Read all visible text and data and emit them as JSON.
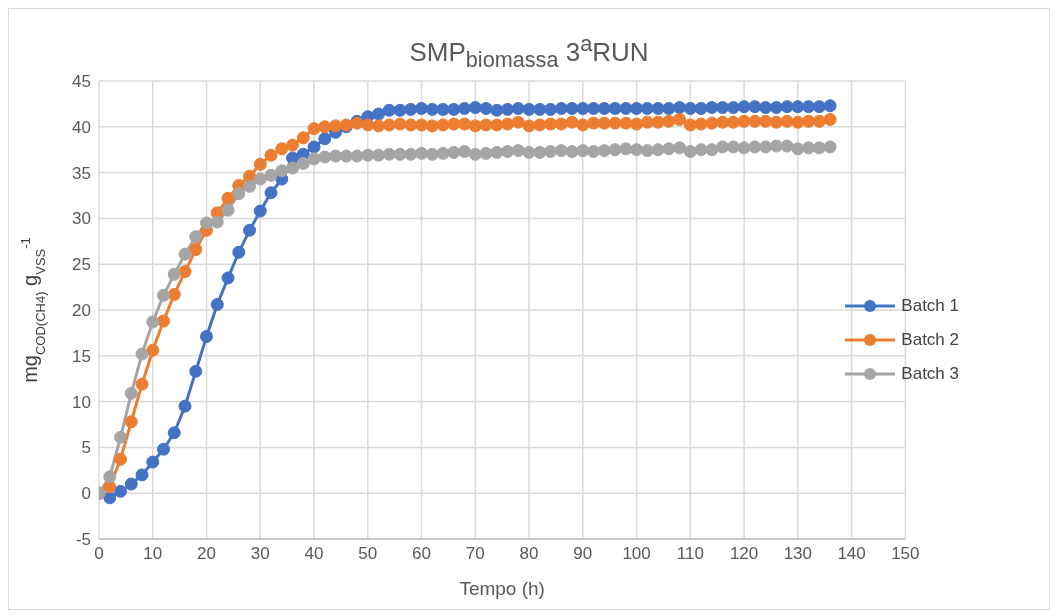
{
  "chart_data": {
    "type": "line",
    "title": "SMP$_{biomassa}$ 3$^{a}$RUN",
    "xlabel": "Tempo (h)",
    "ylabel": "mg$_{COD(CH4)}$ g$_{VSS}$$^{-1}$",
    "x": [
      0,
      2,
      4,
      6,
      8,
      10,
      12,
      14,
      16,
      18,
      20,
      22,
      24,
      26,
      28,
      30,
      32,
      34,
      36,
      38,
      40,
      42,
      44,
      46,
      48,
      50,
      52,
      54,
      56,
      58,
      60,
      62,
      64,
      66,
      68,
      70,
      72,
      74,
      76,
      78,
      80,
      82,
      84,
      86,
      88,
      90,
      92,
      94,
      96,
      98,
      100,
      102,
      104,
      106,
      108,
      110,
      112,
      114,
      116,
      118,
      120,
      122,
      124,
      126,
      128,
      130,
      132,
      134,
      136
    ],
    "series": [
      {
        "name": "Batch 1",
        "color": "#4472c4",
        "values": [
          0,
          -0.5,
          0.2,
          1.0,
          2.0,
          3.4,
          4.8,
          6.6,
          9.5,
          13.3,
          17.1,
          20.6,
          23.5,
          26.3,
          28.7,
          30.8,
          32.8,
          34.3,
          36.6,
          37.0,
          37.8,
          38.7,
          39.4,
          40.0,
          40.6,
          41.1,
          41.4,
          41.8,
          41.8,
          41.9,
          42.0,
          41.9,
          41.9,
          41.9,
          42.0,
          42.1,
          42.0,
          41.8,
          41.9,
          42.0,
          41.9,
          41.9,
          41.9,
          42.0,
          42.0,
          42.0,
          42.0,
          42.0,
          42.0,
          42.0,
          42.0,
          42.0,
          42.0,
          42.0,
          42.1,
          42.0,
          42.0,
          42.1,
          42.1,
          42.1,
          42.2,
          42.2,
          42.1,
          42.1,
          42.2,
          42.2,
          42.2,
          42.2,
          42.3
        ]
      },
      {
        "name": "Batch 2",
        "color": "#ed7d31",
        "values": [
          0,
          0.7,
          3.7,
          7.8,
          11.9,
          15.6,
          18.8,
          21.7,
          24.2,
          26.6,
          28.7,
          30.6,
          32.2,
          33.6,
          34.6,
          35.9,
          36.9,
          37.6,
          38.0,
          38.8,
          39.8,
          40.0,
          40.1,
          40.2,
          40.4,
          40.2,
          40.1,
          40.2,
          40.3,
          40.2,
          40.2,
          40.1,
          40.2,
          40.3,
          40.3,
          40.1,
          40.2,
          40.2,
          40.3,
          40.5,
          40.1,
          40.2,
          40.3,
          40.3,
          40.5,
          40.2,
          40.4,
          40.4,
          40.4,
          40.4,
          40.3,
          40.5,
          40.5,
          40.6,
          40.8,
          40.2,
          40.3,
          40.4,
          40.5,
          40.5,
          40.6,
          40.6,
          40.6,
          40.5,
          40.6,
          40.5,
          40.6,
          40.6,
          40.8
        ]
      },
      {
        "name": "Batch 3",
        "color": "#a5a5a5",
        "values": [
          0,
          1.8,
          6.1,
          10.9,
          15.2,
          18.7,
          21.6,
          23.9,
          26.1,
          28.0,
          29.5,
          29.6,
          30.9,
          32.7,
          33.5,
          34.3,
          34.7,
          35.2,
          35.5,
          36.0,
          36.5,
          36.7,
          36.8,
          36.8,
          36.8,
          36.9,
          36.9,
          37.0,
          37.0,
          37.0,
          37.1,
          37.0,
          37.1,
          37.2,
          37.3,
          37.0,
          37.1,
          37.2,
          37.3,
          37.4,
          37.2,
          37.2,
          37.3,
          37.4,
          37.3,
          37.4,
          37.3,
          37.4,
          37.5,
          37.6,
          37.5,
          37.4,
          37.5,
          37.6,
          37.7,
          37.3,
          37.5,
          37.5,
          37.8,
          37.8,
          37.7,
          37.8,
          37.8,
          37.9,
          37.9,
          37.6,
          37.7,
          37.7,
          37.8
        ]
      }
    ],
    "xlim": [
      0,
      150
    ],
    "xticks": [
      0,
      10,
      20,
      30,
      40,
      50,
      60,
      70,
      80,
      90,
      100,
      110,
      120,
      130,
      140,
      150
    ],
    "ylim": [
      -5,
      45
    ],
    "yticks": [
      -5,
      0,
      5,
      10,
      15,
      20,
      25,
      30,
      35,
      40,
      45
    ],
    "grid": true,
    "legend": "right",
    "marker": "circle",
    "line_style": "solid"
  }
}
